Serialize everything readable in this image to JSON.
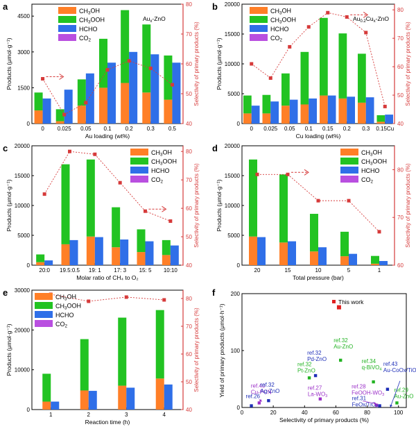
{
  "colors": {
    "ch3oh": "#ff7f27",
    "ch3ooh": "#22c322",
    "hcho": "#2f6fe8",
    "co2": "#b94fe0",
    "selectivity": "#d63a3a",
    "this_work": "#e02020",
    "ref_green": "#22b322",
    "ref_blue": "#1f2fb8",
    "ref_purple": "#9b30c8"
  },
  "chart_data": [
    {
      "panel": "a",
      "type": "bar",
      "inset_title": "Aux-ZnO",
      "xlabel": "Au loading (wt%)",
      "ylabel": "Products (μmol·g⁻¹)",
      "y2label": "Selectivity of primary products (%)",
      "categories": [
        "0",
        "0.025",
        "0.05",
        "0.1",
        "0.2",
        "0.3",
        "0.5"
      ],
      "ylim": [
        0,
        5000
      ],
      "yticks": [
        0,
        1500,
        3000,
        4500
      ],
      "y2lim": [
        40,
        80
      ],
      "y2ticks": [
        40,
        50,
        60,
        70,
        80
      ],
      "legend": [
        "CH3OH",
        "CH3OOH",
        "HCHO",
        "CO2"
      ],
      "series": [
        {
          "name": "CH3OH",
          "values": [
            550,
            100,
            750,
            1500,
            1700,
            1300,
            1000
          ]
        },
        {
          "name": "CH3OOH",
          "values": [
            750,
            500,
            1100,
            2050,
            3050,
            2850,
            1850
          ]
        },
        {
          "name": "HCHO",
          "values": [
            1050,
            1420,
            2100,
            2550,
            3000,
            2900,
            2550
          ]
        },
        {
          "name": "CO2",
          "values": [
            0,
            0,
            0,
            0,
            0,
            0,
            0
          ]
        },
        {
          "name": "Selectivity",
          "axis": "right",
          "values": [
            55,
            43,
            47,
            58,
            61,
            58.5,
            53
          ]
        }
      ],
      "arrow_at": 0
    },
    {
      "panel": "b",
      "type": "bar",
      "inset_title": "Au0.2Cux-ZnO",
      "xlabel": "Cu loading (wt%)",
      "ylabel": "Products (μmol·g⁻¹)",
      "y2label": "Selectivity of primary products (%)",
      "categories": [
        "0",
        "0.025",
        "0.05",
        "0.1",
        "0.15",
        "0.2",
        "0.3",
        "0.15Cu"
      ],
      "ylim": [
        0,
        20000
      ],
      "yticks": [
        0,
        5000,
        10000,
        15000,
        20000
      ],
      "y2lim": [
        40,
        82
      ],
      "y2ticks": [
        40,
        50,
        60,
        70,
        80
      ],
      "legend": [
        "CH3OH",
        "CH3OOH",
        "HCHO",
        "CO2"
      ],
      "series": [
        {
          "name": "CH3OH",
          "values": [
            1700,
            1700,
            3000,
            3200,
            4700,
            4200,
            3500,
            300
          ]
        },
        {
          "name": "CH3OOH",
          "values": [
            3000,
            3100,
            5400,
            8800,
            13000,
            10900,
            8200,
            1100
          ]
        },
        {
          "name": "HCHO",
          "values": [
            3000,
            3700,
            4000,
            4200,
            4700,
            4500,
            4400,
            1500
          ]
        },
        {
          "name": "CO2",
          "values": [
            0,
            0,
            0,
            0,
            0,
            0,
            0,
            0
          ]
        },
        {
          "name": "Selectivity",
          "axis": "right",
          "values": [
            61,
            56,
            67,
            74,
            79,
            77.5,
            72,
            46
          ]
        }
      ],
      "arrow_at": 5
    },
    {
      "panel": "c",
      "type": "bar",
      "xlabel": "Molar ratio of CH₄ to O₂",
      "ylabel": "Products (μmol·g⁻¹)",
      "y2label": "Selectivity of primary products (%)",
      "categories": [
        "20:0",
        "19.5:0.5",
        "19: 1",
        "17: 3",
        "15: 5",
        "10:10"
      ],
      "ylim": [
        0,
        20000
      ],
      "yticks": [
        0,
        5000,
        10000,
        15000,
        20000
      ],
      "y2lim": [
        40,
        82
      ],
      "y2ticks": [
        40,
        50,
        60,
        70,
        80
      ],
      "legend": [
        "CH3OH",
        "CH3OOH",
        "HCHO",
        "CO2"
      ],
      "series": [
        {
          "name": "CH3OH",
          "values": [
            500,
            3500,
            4800,
            3000,
            2200,
            1700
          ]
        },
        {
          "name": "CH3OOH",
          "values": [
            1300,
            13400,
            12900,
            6700,
            3800,
            2500
          ]
        },
        {
          "name": "HCHO",
          "values": [
            800,
            4200,
            4700,
            4300,
            4000,
            3300
          ]
        },
        {
          "name": "CO2",
          "values": [
            0,
            0,
            0,
            0,
            0,
            0
          ]
        },
        {
          "name": "Selectivity",
          "axis": "right",
          "values": [
            65,
            80,
            79,
            69,
            59,
            55.5
          ]
        }
      ],
      "arrow_at": 4
    },
    {
      "panel": "d",
      "type": "bar",
      "xlabel": "Total pressure (bar)",
      "ylabel": "Products (μmol·g⁻¹)",
      "y2label": "Selectivity of primary products (%)",
      "categories": [
        "20",
        "15",
        "10",
        "5",
        "1"
      ],
      "ylim": [
        0,
        20000
      ],
      "yticks": [
        0,
        5000,
        10000,
        15000,
        20000
      ],
      "y2lim": [
        60,
        85
      ],
      "y2ticks": [
        60,
        70,
        80
      ],
      "legend": [
        "CH3OH",
        "CH3OOH",
        "HCHO",
        "CO2"
      ],
      "series": [
        {
          "name": "CH3OH",
          "values": [
            4800,
            3800,
            2300,
            1500,
            250
          ]
        },
        {
          "name": "CH3OOH",
          "values": [
            12900,
            11400,
            6300,
            4100,
            1300
          ]
        },
        {
          "name": "HCHO",
          "values": [
            4700,
            4000,
            3000,
            1900,
            700
          ]
        },
        {
          "name": "CO2",
          "values": [
            0,
            0,
            0,
            0,
            0
          ]
        },
        {
          "name": "Selectivity",
          "axis": "right",
          "values": [
            79,
            79,
            73.5,
            73.5,
            67
          ]
        }
      ],
      "arrow_at": 1
    },
    {
      "panel": "e",
      "type": "bar",
      "xlabel": "Reaction time (h)",
      "ylabel": "Products (μmol·g⁻¹)",
      "y2label": "Selectivity of primary products (%)",
      "categories": [
        "1",
        "2",
        "3",
        "4"
      ],
      "ylim": [
        0,
        30000
      ],
      "yticks": [
        0,
        10000,
        20000,
        30000
      ],
      "y2lim": [
        40,
        83
      ],
      "y2ticks": [
        40,
        50,
        60,
        70,
        80
      ],
      "legend": [
        "CH3OH",
        "CH3OOH",
        "HCHO",
        "CO2"
      ],
      "series": [
        {
          "name": "CH3OH",
          "values": [
            2000,
            4800,
            6000,
            7800
          ]
        },
        {
          "name": "CH3OOH",
          "values": [
            7000,
            12900,
            17100,
            17200
          ]
        },
        {
          "name": "HCHO",
          "values": [
            2000,
            4700,
            5500,
            6300
          ]
        },
        {
          "name": "CO2",
          "values": [
            0,
            0,
            0,
            0
          ]
        },
        {
          "name": "Selectivity",
          "axis": "right",
          "values": [
            81.5,
            79,
            80.5,
            79.5
          ]
        }
      ]
    },
    {
      "panel": "f",
      "type": "scatter",
      "xlabel": "Selectivity of primary products (%)",
      "ylabel": "Yield of primary products (μmol·h⁻¹)",
      "xlim": [
        0,
        105
      ],
      "xticks": [
        0,
        20,
        40,
        60,
        80,
        100
      ],
      "ylim": [
        0,
        200
      ],
      "yticks": [
        0,
        100,
        200
      ],
      "legend": [
        "This work"
      ],
      "points": [
        {
          "x": 62,
          "y": 176,
          "ref": "",
          "label": "",
          "kind": "this_work"
        },
        {
          "x": 6,
          "y": 3,
          "ref": "ref.26",
          "label": "",
          "kind": "ref_blue"
        },
        {
          "x": 11,
          "y": 8,
          "ref": "ref.40",
          "label": "Cu-PCN",
          "kind": "ref_purple"
        },
        {
          "x": 17,
          "y": 12,
          "ref": "ref.32",
          "label": "Ag-ZnO",
          "kind": "ref_blue"
        },
        {
          "x": 43,
          "y": 52,
          "ref": "ref.32",
          "label": "Pt-ZnO",
          "kind": "ref_green"
        },
        {
          "x": 47,
          "y": 56,
          "ref": "ref.32",
          "label": "Pd-ZnO",
          "kind": "ref_blue"
        },
        {
          "x": 50,
          "y": 15,
          "ref": "ref.27",
          "label": "La-WO3",
          "kind": "ref_purple"
        },
        {
          "x": 63,
          "y": 83,
          "ref": "ref.32",
          "label": "Au-ZnO",
          "kind": "ref_green"
        },
        {
          "x": 84,
          "y": 45,
          "ref": "ref.34",
          "label": "q-BiVO4",
          "kind": "ref_green"
        },
        {
          "x": 86,
          "y": 4,
          "ref": "ref.28",
          "label": "FeOOH-WO3",
          "kind": "ref_purple"
        },
        {
          "x": 88,
          "y": 3,
          "ref": "ref.31",
          "label": "FeOx/TiO2",
          "kind": "ref_blue"
        },
        {
          "x": 93,
          "y": 32,
          "ref": "ref.43",
          "label": "Au-CoOx/TiO2",
          "kind": "ref_blue"
        },
        {
          "x": 99,
          "y": 8,
          "ref": "ref.29",
          "label": "Au-ZnO",
          "kind": "ref_green"
        }
      ]
    }
  ]
}
